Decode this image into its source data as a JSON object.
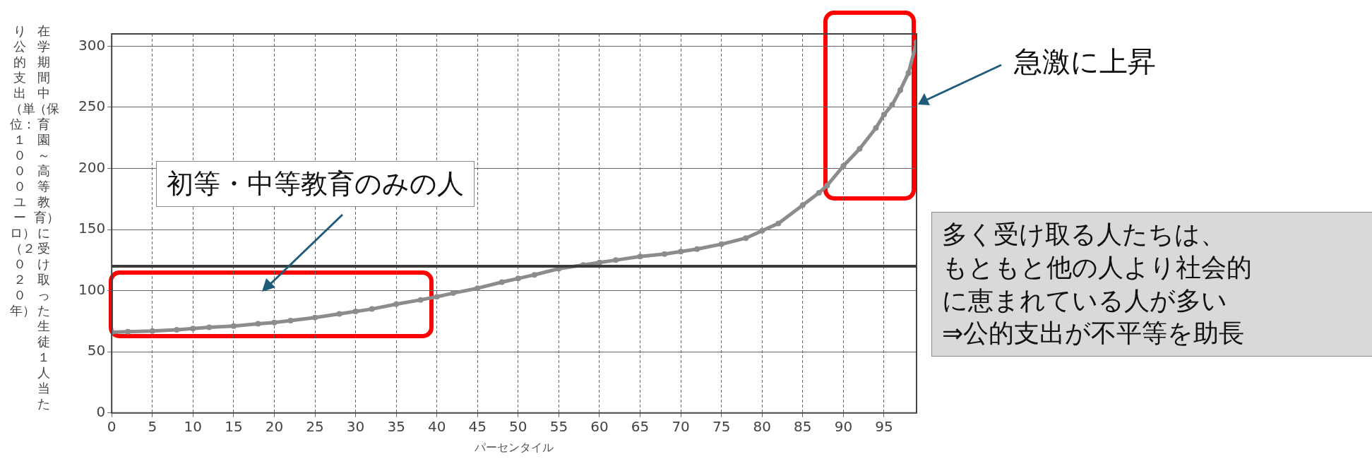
{
  "chart_data": {
    "type": "line",
    "xlabel": "パーセンタイル",
    "ylabel": "在学期間中（保育園～高等教育）に受け取った生徒１人当たり公的支出（単位：１０００ユーロ）（２０２０年）",
    "annotations": [
      "初等・中等教育のみの人",
      "急激に上昇",
      "多く受け取る人たちは、",
      "もともと他の人より社会的",
      "に恵まれている人が多い",
      "⇒公的支出が不平等を助長"
    ],
    "series": [
      {
        "color": "#8c8c8c",
        "x": [
          0,
          2,
          5,
          8,
          10,
          12,
          15,
          18,
          20,
          22,
          25,
          28,
          30,
          32,
          35,
          38,
          40,
          42,
          45,
          48,
          50,
          52,
          55,
          58,
          60,
          62,
          65,
          68,
          70,
          72,
          75,
          78,
          80,
          82,
          85,
          87,
          88,
          90,
          92,
          94,
          95,
          96,
          97,
          98,
          99
        ],
        "values": [
          66,
          66.5,
          67,
          68,
          69,
          70,
          71,
          73,
          74,
          75.5,
          78,
          81,
          83,
          85,
          89,
          92.5,
          95,
          98,
          102,
          107,
          110,
          113,
          118,
          121,
          123,
          125,
          128,
          130,
          132,
          134,
          138,
          143,
          149,
          155,
          170,
          180,
          186,
          202,
          216,
          233,
          244,
          252,
          264,
          278,
          303
        ]
      }
    ],
    "ref_lines": [
      {
        "axis": "y",
        "value": 120,
        "color": "#3a3a3a"
      }
    ],
    "xlim": [
      0,
      99
    ],
    "xticks": [
      0,
      5,
      10,
      15,
      20,
      25,
      30,
      35,
      40,
      45,
      50,
      55,
      60,
      65,
      70,
      75,
      80,
      85,
      90,
      95
    ],
    "ylim": [
      0,
      310
    ],
    "yticks": [
      0,
      50,
      100,
      150,
      200,
      250,
      300
    ],
    "grid": true,
    "legend": false,
    "marker": "circle",
    "line_style": "solid"
  }
}
